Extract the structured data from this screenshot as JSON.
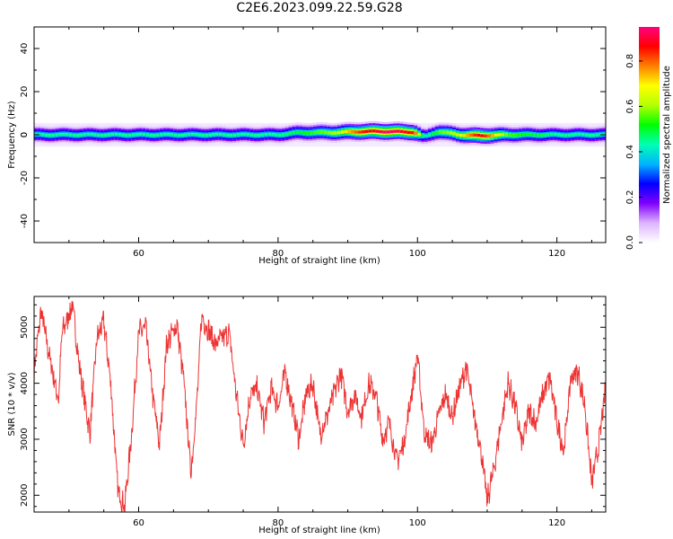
{
  "title": "C2E6.2023.099.22.59.G28",
  "chart_data": [
    {
      "type": "heatmap",
      "xlabel": "Height of straight line (km)",
      "ylabel": "Frequency (Hz)",
      "xlim": [
        45,
        127
      ],
      "ylim": [
        -50,
        50
      ],
      "xticks": [
        60,
        80,
        100,
        120
      ],
      "yticks": [
        -40,
        -20,
        0,
        20,
        40
      ],
      "description_of_content": "",
      "ridge": {
        "x": [
          45,
          60,
          70,
          80,
          83,
          88,
          92,
          96,
          99.5,
          101,
          103,
          106,
          109,
          113,
          120,
          127
        ],
        "center_hz": [
          0,
          0,
          0,
          0,
          1,
          1,
          1.5,
          1.5,
          1.2,
          -1,
          1.5,
          0,
          -0.5,
          0,
          0,
          0
        ],
        "peak_amplitude": [
          0.45,
          0.45,
          0.45,
          0.45,
          0.5,
          0.6,
          0.85,
          0.95,
          0.85,
          0.4,
          0.55,
          0.65,
          0.9,
          0.55,
          0.45,
          0.45
        ]
      },
      "colorbar": {
        "label": "Normalized spectral amplitude",
        "range": [
          0.0,
          0.95
        ],
        "ticks": [
          "0.0",
          "0.2",
          "0.4",
          "0.6",
          "0.8"
        ],
        "tick_values": [
          0.0,
          0.2,
          0.4,
          0.6,
          0.8
        ],
        "colors": [
          "#ffffff",
          "#dcb4ff",
          "#8000ff",
          "#0000ff",
          "#00b4ff",
          "#00ffb4",
          "#00ff00",
          "#b4ff00",
          "#ffff00",
          "#ff8000",
          "#ff0000",
          "#ff0080"
        ]
      }
    },
    {
      "type": "line",
      "xlabel": "Height of straight line (km)",
      "ylabel": "SNR (10 * v/v)",
      "xlim": [
        45,
        127
      ],
      "ylim": [
        1700,
        5550
      ],
      "xticks": [
        60,
        80,
        100,
        120
      ],
      "yticks": [
        2000,
        3000,
        4000,
        5000
      ],
      "color": "#ee3333",
      "x": [
        45,
        46,
        47,
        48.5,
        49,
        50.5,
        51.5,
        53,
        54,
        55,
        56,
        57,
        58,
        59,
        60,
        61,
        62,
        63,
        64,
        65.5,
        66.5,
        67.5,
        68.5,
        69,
        71,
        73,
        74,
        75,
        76,
        77,
        78,
        79,
        80,
        81,
        82,
        83,
        84,
        85,
        86,
        87,
        88,
        89,
        90,
        91,
        92,
        93,
        94,
        95,
        96,
        97,
        98,
        99,
        100,
        101,
        102,
        103,
        104,
        105,
        106,
        107,
        108,
        109,
        110,
        111,
        112,
        113,
        114,
        115,
        116,
        117,
        118,
        119,
        120,
        121,
        122,
        123,
        124,
        125,
        126,
        127
      ],
      "y": [
        4200,
        5300,
        4600,
        3700,
        4900,
        5400,
        4300,
        3100,
        4800,
        5100,
        4000,
        2100,
        1800,
        3100,
        4900,
        5000,
        3800,
        2900,
        4700,
        5050,
        4000,
        2400,
        3900,
        5200,
        4700,
        4900,
        3800,
        2900,
        3800,
        3900,
        3300,
        3900,
        3600,
        4200,
        3600,
        3000,
        3800,
        4000,
        3100,
        3400,
        3800,
        4200,
        3500,
        3800,
        3400,
        4000,
        3800,
        3000,
        3300,
        2600,
        2900,
        3700,
        4500,
        3100,
        2900,
        3400,
        3800,
        3400,
        3900,
        4300,
        3500,
        2900,
        1900,
        2500,
        3300,
        4000,
        3600,
        2900,
        3500,
        3300,
        3800,
        4100,
        3300,
        2800,
        4100,
        4200,
        3600,
        2200,
        2900,
        3900
      ]
    }
  ]
}
